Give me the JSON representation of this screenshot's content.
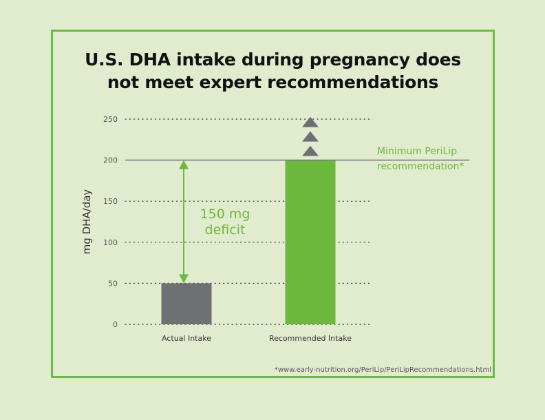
{
  "title_line1": "U.S. DHA intake during pregnancy does",
  "title_line2": "not meet expert recommendations",
  "footnote": "*www.early-nutrition.org/PeriLip/PeriLipRecommendations.html",
  "colors": {
    "background": "#e1eccf",
    "border": "#6dba45",
    "actual_bar": "#6e7073",
    "recommended_bar": "#6db83f",
    "accent_text": "#6db83f",
    "axis_text": "#555555"
  },
  "chart_data": {
    "type": "bar",
    "categories": [
      "Actual Intake",
      "Recommended Intake"
    ],
    "values": [
      50,
      200
    ],
    "ylabel": "mg DHA/day",
    "xlabel": "",
    "ylim": [
      0,
      250
    ],
    "yticks": [
      0,
      50,
      100,
      150,
      200,
      250
    ],
    "grid": true,
    "reference_line": {
      "value": 200,
      "label_lines": [
        "Minimum PeriLip",
        "recommendation*"
      ]
    },
    "annotation": {
      "text_lines": [
        "150 mg",
        "deficit"
      ],
      "from": 50,
      "to": 200
    },
    "up_arrow_count": 3
  }
}
